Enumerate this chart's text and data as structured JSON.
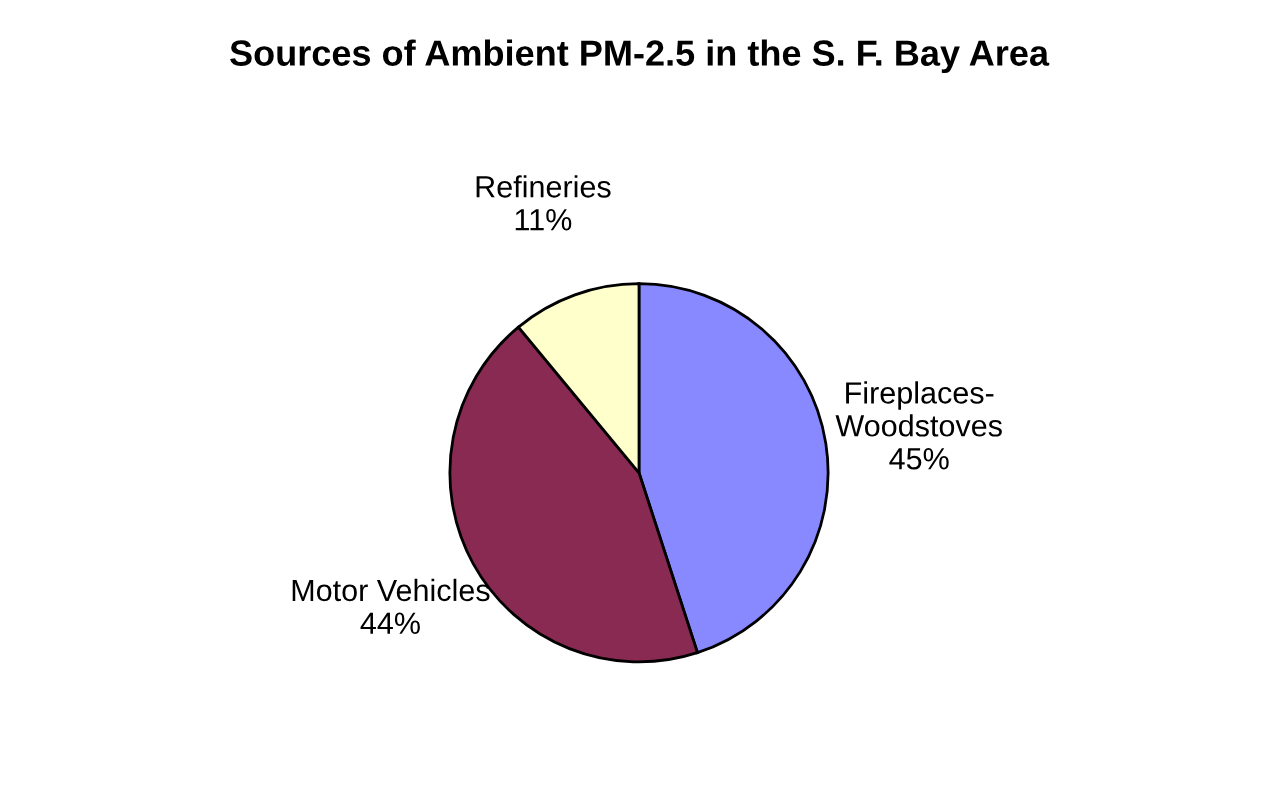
{
  "chart_data": {
    "type": "pie",
    "title": "Sources of Ambient PM-2.5 in the S. F. Bay Area",
    "categories": [
      "Fireplaces-Woodstoves",
      "Motor Vehicles",
      "Refineries"
    ],
    "values": [
      45,
      44,
      11
    ],
    "value_labels": [
      "45%",
      "44%",
      "11%"
    ],
    "colors": [
      "#8888ff",
      "#882a52",
      "#ffffcc"
    ],
    "legend": false
  }
}
